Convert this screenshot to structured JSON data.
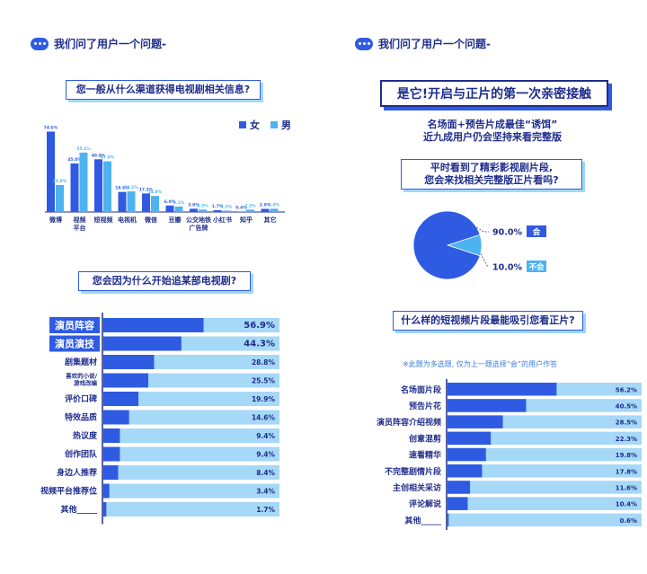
{
  "left": {
    "header": "我们问了用户一个问题-",
    "chart1": {
      "question": "您一般从什么渠道获得电视剧相关信息?",
      "legend": [
        {
          "name": "女",
          "color": "#2f5be3"
        },
        {
          "name": "男",
          "color": "#4db3f0"
        }
      ]
    },
    "chart2": {
      "question": "您会因为什么开始追某部电视剧?"
    }
  },
  "right": {
    "header": "我们问了用户一个问题-",
    "headline": "是它!开启与正片的第一次亲密接触",
    "subtitle_line1": "名场面+预告片成最佳“诱饵”",
    "subtitle_line2": "近九成用户仍会坚持来看完整版",
    "pie_question_line1": "平时看到了精彩影视剧片段,",
    "pie_question_line2": "您会来找相关完整版正片看吗?",
    "chart4": {
      "question": "什么样的短视频片段最能吸引您看正片?",
      "note": "※此题为多选题, 仅为上一题选择“会”的用户作答"
    }
  },
  "chart_data": [
    {
      "type": "bar",
      "title": "您一般从什么渠道获得电视剧相关信息?",
      "categories": [
        "微博",
        "视频平台",
        "短视频",
        "电视机",
        "微信",
        "豆瓣",
        "公交地铁广告牌",
        "小红书",
        "知乎",
        "其它"
      ],
      "category_lines": [
        [
          "微博"
        ],
        [
          "视频",
          "平台"
        ],
        [
          "短视频"
        ],
        [
          "电视机"
        ],
        [
          "微信"
        ],
        [
          "豆瓣"
        ],
        [
          "公交地铁",
          "广告牌"
        ],
        [
          "小红书"
        ],
        [
          "知乎"
        ],
        [
          "其它"
        ]
      ],
      "series": [
        {
          "name": "女",
          "values": [
            74.6,
            45.0,
            48.9,
            18.6,
            17.2,
            6.0,
            3.0,
            1.7,
            0.4,
            2.9
          ],
          "labels": [
            "74.6%",
            "45.0%",
            "48.9%",
            "18.6%",
            "17.2%",
            "6.0%",
            "3.0%",
            "1.7%",
            "0.4%",
            "2.9%"
          ],
          "color": "#2f5be3"
        },
        {
          "name": "男",
          "values": [
            25.0,
            55.1,
            47.0,
            19.1,
            14.9,
            5.1,
            2.2,
            1.3,
            2.2,
            3.0
          ],
          "labels": [
            "25.0%",
            "55.1%",
            "47.0%",
            "19.1%",
            "14.9%",
            "5.1%",
            "2.2%",
            "1.3%",
            "2.2%",
            "3.0%"
          ],
          "color": "#4db3f0"
        }
      ],
      "ylim": [
        0,
        80
      ],
      "legend": "top-right"
    },
    {
      "type": "bar",
      "orientation": "horizontal",
      "title": "您会因为什么开始追某部电视剧?",
      "categories": [
        "演员阵容",
        "演员演技",
        "剧集题材",
        "喜欢的小说/游戏改编",
        "评价口碑",
        "特效品质",
        "热议度",
        "创作团队",
        "身边人推荐",
        "视频平台推荐位",
        "其他_____"
      ],
      "category_lines": [
        [
          "演员阵容"
        ],
        [
          "演员演技"
        ],
        [
          "剧集题材"
        ],
        [
          "喜欢的小说/",
          "游戏改编"
        ],
        [
          "评价口碑"
        ],
        [
          "特效品质"
        ],
        [
          "热议度"
        ],
        [
          "创作团队"
        ],
        [
          "身边人推荐"
        ],
        [
          "视频平台推荐位"
        ],
        [
          "其他_____"
        ]
      ],
      "values": [
        56.9,
        44.3,
        28.8,
        25.5,
        19.9,
        14.6,
        9.4,
        9.4,
        8.4,
        3.4,
        1.7
      ],
      "labels": [
        "56.9%",
        "44.3%",
        "28.8%",
        "25.5%",
        "19.9%",
        "14.6%",
        "9.4%",
        "9.4%",
        "8.4%",
        "3.4%",
        "1.7%"
      ],
      "highlight": [
        true,
        true,
        false,
        false,
        false,
        false,
        false,
        false,
        false,
        false,
        false
      ],
      "xlim": [
        0,
        100
      ]
    },
    {
      "type": "pie",
      "title": "平时看到了精彩影视剧片段,您会来找相关完整版正片看吗?",
      "categories": [
        "会",
        "不会"
      ],
      "values": [
        90.0,
        10.0
      ],
      "labels": [
        "90.0%",
        "10.0%"
      ],
      "colors": [
        "#2f5be3",
        "#4db3f0"
      ]
    },
    {
      "type": "bar",
      "orientation": "horizontal",
      "title": "什么样的短视频片段最能吸引您看正片?",
      "categories": [
        "名场面片段",
        "预告片花",
        "演员阵容介绍视频",
        "创意混剪",
        "速看精华",
        "不完整剧情片段",
        "主创相关采访",
        "评论解说",
        "其他_____"
      ],
      "values": [
        56.2,
        40.5,
        28.5,
        22.3,
        19.8,
        17.8,
        11.6,
        10.4,
        0.6
      ],
      "labels": [
        "56.2%",
        "40.5%",
        "28.5%",
        "22.3%",
        "19.8%",
        "17.8%",
        "11.6%",
        "10.4%",
        "0.6%"
      ],
      "xlim": [
        0,
        100
      ]
    }
  ]
}
